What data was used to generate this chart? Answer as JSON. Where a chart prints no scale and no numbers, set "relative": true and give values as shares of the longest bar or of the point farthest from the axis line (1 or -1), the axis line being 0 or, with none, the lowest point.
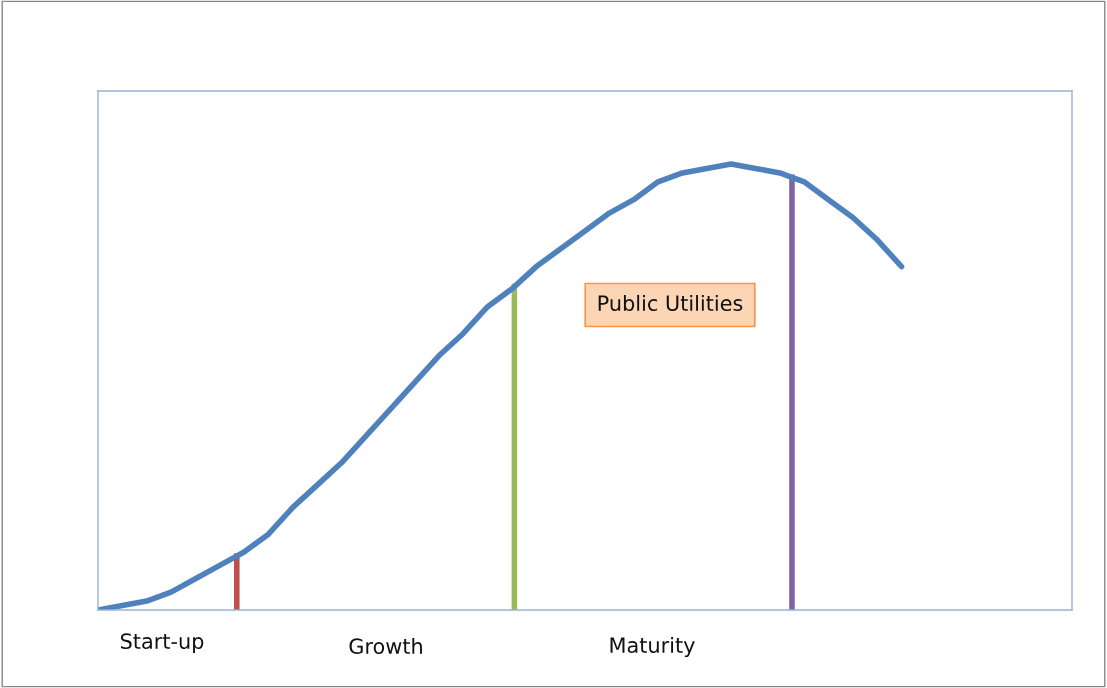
{
  "chart_data": {
    "type": "line",
    "relative": true,
    "categories": [
      null,
      null,
      null,
      null,
      null,
      null,
      null,
      null,
      null,
      null,
      null,
      null,
      null,
      null,
      null,
      null,
      null,
      null,
      null,
      null,
      null,
      null,
      null,
      null,
      null,
      null,
      null,
      null,
      null,
      null,
      null,
      null,
      null,
      null,
      null,
      null,
      null,
      null,
      null,
      null,
      null
    ],
    "series": [
      {
        "color": "#4f81bd",
        "values": [
          0.0,
          0.01,
          0.02,
          0.04,
          0.07,
          0.1,
          0.13,
          0.17,
          0.23,
          0.28,
          0.33,
          0.39,
          0.45,
          0.51,
          0.57,
          0.62,
          0.68,
          0.72,
          0.77,
          0.81,
          0.85,
          0.89,
          0.92,
          0.96,
          0.98,
          0.99,
          1.0,
          0.99,
          0.98,
          0.96,
          0.92,
          0.88,
          0.83,
          0.77,
          null,
          null,
          null,
          null,
          null,
          null,
          null
        ]
      }
    ],
    "annotations": [
      "Start-up",
      "Growth",
      "Maturity",
      "Public Utilities"
    ],
    "legend": false,
    "tick_labels": false,
    "marker": "none",
    "line_style": "solid"
  }
}
